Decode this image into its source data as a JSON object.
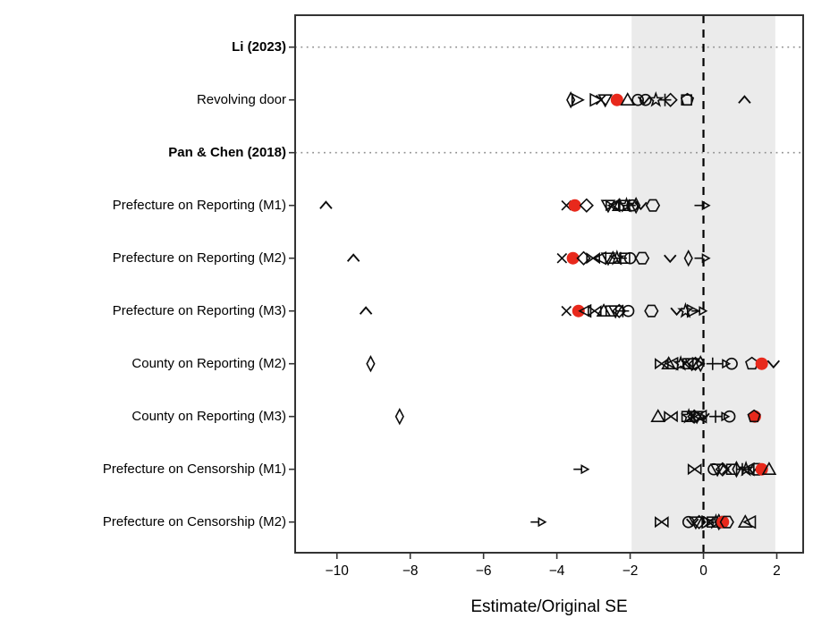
{
  "chart_data": {
    "type": "scatter",
    "title": "",
    "xlabel": "Estimate/Original SE",
    "ylabel": "",
    "xlim": [
      -11.14,
      2.72
    ],
    "x_tick_values": [
      -10,
      -8,
      -6,
      -4,
      -2,
      0,
      2
    ],
    "x_tick_labels": [
      "−10",
      "−8",
      "−6",
      "−4",
      "−2",
      "0",
      "2"
    ],
    "grid": "off",
    "legend": "none",
    "shaded_band": [
      -1.96,
      1.96
    ],
    "reference_line_x": 0,
    "colors": {
      "marker": "#0d0d0d",
      "original": "#e8291c",
      "band": "#ebebeb",
      "separator": "#909090",
      "panel_border": "#333333"
    },
    "rows": [
      {
        "label": "Li (2023)",
        "style": "header",
        "separator": true,
        "points": []
      },
      {
        "label": "Revolving door",
        "style": "normal",
        "separator": false,
        "points": [
          [
            -3.62,
            "lozenge"
          ],
          [
            -3.58,
            "bar"
          ],
          [
            -3.45,
            "triangle-right"
          ],
          [
            -2.95,
            "triangle-right"
          ],
          [
            -2.8,
            "x"
          ],
          [
            -2.68,
            "triangle-down"
          ],
          [
            -2.36,
            "original"
          ],
          [
            -2.07,
            "triangle-up"
          ],
          [
            -1.79,
            "circle"
          ],
          [
            -1.62,
            "caret-down"
          ],
          [
            -1.58,
            "circle"
          ],
          [
            -1.3,
            "star"
          ],
          [
            -1.05,
            "plus"
          ],
          [
            -0.9,
            "diamond"
          ],
          [
            -0.46,
            "square"
          ],
          [
            -0.44,
            "pentagon"
          ],
          [
            1.12,
            "caret-up"
          ]
        ]
      },
      {
        "label": "Pan & Chen (2018)",
        "style": "header",
        "separator": true,
        "points": []
      },
      {
        "label": "Prefecture on Reporting (M1)",
        "style": "normal",
        "separator": false,
        "points": [
          [
            -10.3,
            "caret-up"
          ],
          [
            -3.74,
            "x"
          ],
          [
            -3.51,
            "original"
          ],
          [
            -3.19,
            "diamond"
          ],
          [
            -2.6,
            "triangle-down"
          ],
          [
            -2.48,
            "bowtie"
          ],
          [
            -2.42,
            "triangle-left"
          ],
          [
            -2.3,
            "triangle-up"
          ],
          [
            -2.18,
            "square"
          ],
          [
            -2.1,
            "star"
          ],
          [
            -2.02,
            "plus"
          ],
          [
            -1.94,
            "circle"
          ],
          [
            -1.84,
            "lozenge"
          ],
          [
            -1.71,
            "caret-down"
          ],
          [
            -1.38,
            "hexagon"
          ],
          [
            -0.05,
            "arrow-right"
          ]
        ]
      },
      {
        "label": "Prefecture on Reporting (M2)",
        "style": "normal",
        "separator": false,
        "points": [
          [
            -9.55,
            "caret-up"
          ],
          [
            -3.86,
            "x"
          ],
          [
            -3.56,
            "original"
          ],
          [
            -3.27,
            "diamond"
          ],
          [
            -3.01,
            "bowtie"
          ],
          [
            -2.8,
            "triangle-left"
          ],
          [
            -2.6,
            "triangle-down"
          ],
          [
            -2.47,
            "triangle-up"
          ],
          [
            -2.36,
            "star"
          ],
          [
            -2.26,
            "plus"
          ],
          [
            -2.15,
            "square"
          ],
          [
            -2.0,
            "circle"
          ],
          [
            -1.67,
            "hexagon"
          ],
          [
            -0.91,
            "caret-down"
          ],
          [
            -0.41,
            "lozenge"
          ],
          [
            -0.05,
            "arrow-right"
          ]
        ]
      },
      {
        "label": "Prefecture on Reporting (M3)",
        "style": "normal",
        "separator": false,
        "points": [
          [
            -9.21,
            "caret-up"
          ],
          [
            -3.74,
            "x"
          ],
          [
            -3.41,
            "original"
          ],
          [
            -3.21,
            "triangle-left"
          ],
          [
            -2.97,
            "bowtie"
          ],
          [
            -2.72,
            "triangle-up"
          ],
          [
            -2.52,
            "square"
          ],
          [
            -2.4,
            "triangle-down"
          ],
          [
            -2.3,
            "diamond"
          ],
          [
            -2.2,
            "plus"
          ],
          [
            -2.05,
            "circle"
          ],
          [
            -1.42,
            "hexagon"
          ],
          [
            -0.73,
            "caret-down"
          ],
          [
            -0.49,
            "star"
          ],
          [
            -0.3,
            "triangle-right"
          ],
          [
            -0.13,
            "arrow-right"
          ]
        ]
      },
      {
        "label": "County on Reporting (M2)",
        "style": "normal",
        "separator": false,
        "points": [
          [
            -9.08,
            "lozenge"
          ],
          [
            -1.14,
            "bowtie"
          ],
          [
            -0.95,
            "triangle-up"
          ],
          [
            -0.84,
            "triangle-left"
          ],
          [
            -0.62,
            "star"
          ],
          [
            -0.5,
            "x"
          ],
          [
            -0.42,
            "square"
          ],
          [
            -0.32,
            "triangle-down"
          ],
          [
            -0.22,
            "diamond"
          ],
          [
            -0.16,
            "triangle-right"
          ],
          [
            -0.08,
            "lozenge"
          ],
          [
            0.25,
            "plus"
          ],
          [
            0.5,
            "arrow-right"
          ],
          [
            0.77,
            "circle"
          ],
          [
            1.32,
            "pentagon"
          ],
          [
            1.59,
            "original"
          ],
          [
            1.91,
            "caret-down"
          ]
        ]
      },
      {
        "label": "County on Reporting (M3)",
        "style": "normal",
        "separator": false,
        "points": [
          [
            -8.29,
            "lozenge"
          ],
          [
            -1.24,
            "triangle-up"
          ],
          [
            -0.89,
            "bowtie"
          ],
          [
            -0.45,
            "square"
          ],
          [
            -0.4,
            "star"
          ],
          [
            -0.32,
            "x"
          ],
          [
            -0.25,
            "diamond"
          ],
          [
            -0.18,
            "triangle-down"
          ],
          [
            -0.12,
            "triangle-right"
          ],
          [
            -0.06,
            "triangle-left"
          ],
          [
            0.0,
            "caret-down"
          ],
          [
            0.33,
            "plus"
          ],
          [
            0.48,
            "arrow-right"
          ],
          [
            0.71,
            "circle"
          ],
          [
            1.4,
            "original"
          ],
          [
            1.38,
            "pentagon"
          ]
        ]
      },
      {
        "label": "Prefecture on Censorship (M1)",
        "style": "normal",
        "separator": false,
        "points": [
          [
            -3.35,
            "arrow-right"
          ],
          [
            -0.24,
            "bowtie"
          ],
          [
            0.28,
            "circle"
          ],
          [
            0.38,
            "triangle-down"
          ],
          [
            0.52,
            "diamond"
          ],
          [
            0.64,
            "x"
          ],
          [
            0.77,
            "square"
          ],
          [
            0.9,
            "lozenge"
          ],
          [
            1.06,
            "plus"
          ],
          [
            1.16,
            "star"
          ],
          [
            1.24,
            "triangle-left"
          ],
          [
            1.34,
            "caret-down"
          ],
          [
            1.45,
            "hexagon"
          ],
          [
            1.59,
            "original"
          ],
          [
            1.79,
            "triangle-up"
          ]
        ]
      },
      {
        "label": "Prefecture on Censorship (M2)",
        "style": "normal",
        "separator": false,
        "points": [
          [
            -4.52,
            "arrow-right"
          ],
          [
            -1.14,
            "bowtie"
          ],
          [
            -0.41,
            "circle"
          ],
          [
            -0.3,
            "caret-down"
          ],
          [
            -0.21,
            "triangle-down"
          ],
          [
            -0.12,
            "diamond"
          ],
          [
            0.1,
            "triangle-right"
          ],
          [
            0.16,
            "x"
          ],
          [
            0.24,
            "square"
          ],
          [
            0.34,
            "star"
          ],
          [
            0.42,
            "lozenge"
          ],
          [
            0.5,
            "plus"
          ],
          [
            0.53,
            "original"
          ],
          [
            0.64,
            "hexagon"
          ],
          [
            1.14,
            "triangle-up"
          ],
          [
            1.28,
            "triangle-left"
          ]
        ]
      }
    ]
  }
}
